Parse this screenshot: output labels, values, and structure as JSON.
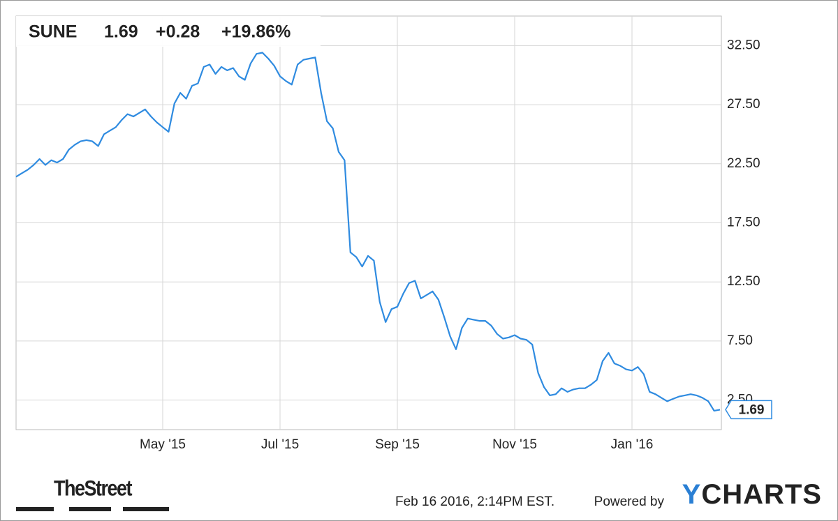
{
  "chart_data": {
    "type": "line",
    "header": {
      "symbol": "SUNE",
      "price": "1.69",
      "change": "+0.28",
      "change_percent": "+19.86%"
    },
    "footer": {
      "timestamp": "Feb 16 2016, 2:14PM EST.",
      "powered_by": "Powered by",
      "brand": "YCHARTS",
      "publisher": "TheStreet"
    },
    "color": "#2f8be0",
    "change_color": "#1f9a1f",
    "grid": true,
    "ylim": [
      0,
      35
    ],
    "yticks": [
      {
        "value": 2.5,
        "label": "2.50"
      },
      {
        "value": 7.5,
        "label": "7.50"
      },
      {
        "value": 12.5,
        "label": "12.50"
      },
      {
        "value": 17.5,
        "label": "17.50"
      },
      {
        "value": 22.5,
        "label": "22.50"
      },
      {
        "value": 27.5,
        "label": "27.50"
      },
      {
        "value": 32.5,
        "label": "32.50"
      }
    ],
    "categories": [
      null,
      null,
      null,
      null,
      null,
      null,
      null,
      null,
      null,
      null,
      null,
      null,
      null,
      null,
      null,
      null,
      null,
      null,
      null,
      null,
      null,
      null,
      null,
      null,
      null,
      "May '15",
      null,
      null,
      null,
      null,
      null,
      null,
      null,
      null,
      null,
      null,
      null,
      null,
      null,
      null,
      null,
      null,
      null,
      null,
      null,
      "Jul '15",
      null,
      null,
      null,
      null,
      null,
      null,
      null,
      null,
      null,
      null,
      null,
      null,
      null,
      null,
      null,
      null,
      null,
      null,
      null,
      "Sep '15",
      null,
      null,
      null,
      null,
      null,
      null,
      null,
      null,
      null,
      null,
      null,
      null,
      null,
      null,
      null,
      null,
      null,
      null,
      null,
      "Nov '15",
      null,
      null,
      null,
      null,
      null,
      null,
      null,
      null,
      null,
      null,
      null,
      null,
      null,
      null,
      null,
      null,
      null,
      null,
      null,
      "Jan '16",
      null,
      null,
      null,
      null,
      null,
      null,
      null,
      null,
      null,
      null,
      null,
      null,
      null,
      null,
      null
    ],
    "values": [
      21.4,
      21.7,
      22.0,
      22.4,
      22.9,
      22.4,
      22.8,
      22.6,
      22.9,
      23.7,
      24.1,
      24.4,
      24.5,
      24.4,
      24.0,
      25.0,
      25.3,
      25.6,
      26.2,
      26.7,
      26.5,
      26.8,
      27.1,
      26.5,
      26.0,
      25.6,
      25.2,
      27.6,
      28.5,
      28.0,
      29.1,
      29.3,
      30.7,
      30.9,
      30.1,
      30.7,
      30.4,
      30.6,
      29.9,
      29.6,
      31.0,
      31.8,
      31.9,
      31.4,
      30.8,
      29.9,
      29.5,
      29.2,
      30.9,
      31.3,
      31.4,
      31.5,
      28.5,
      26.1,
      25.5,
      23.5,
      22.8,
      15.0,
      14.6,
      13.8,
      14.7,
      14.3,
      10.8,
      9.1,
      10.2,
      10.4,
      11.5,
      12.4,
      12.6,
      11.1,
      11.4,
      11.7,
      11.0,
      9.5,
      7.9,
      6.8,
      8.6,
      9.4,
      9.3,
      9.2,
      9.2,
      8.8,
      8.1,
      7.7,
      7.8,
      8.0,
      7.7,
      7.6,
      7.2,
      4.8,
      3.6,
      2.9,
      3.0,
      3.5,
      3.2,
      3.4,
      3.5,
      3.5,
      3.8,
      4.2,
      5.8,
      6.5,
      5.6,
      5.4,
      5.1,
      5.0,
      5.3,
      4.7,
      3.2,
      3.0,
      2.7,
      2.4,
      2.6,
      2.8,
      2.9,
      3.0,
      2.9,
      2.7,
      2.4,
      1.6,
      1.69
    ]
  }
}
